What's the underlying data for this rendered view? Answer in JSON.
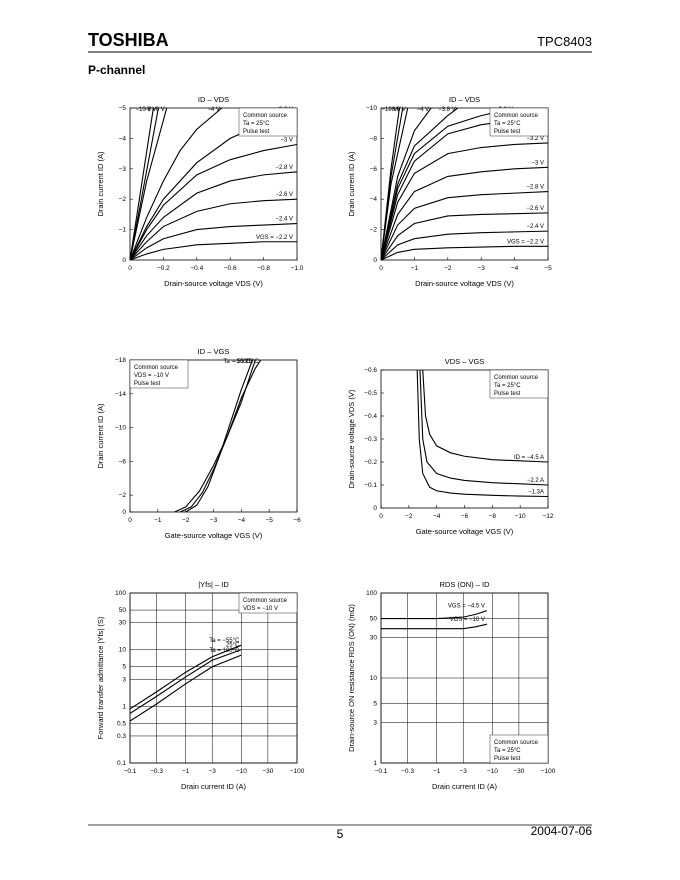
{
  "header": {
    "brand": "TOSHIBA",
    "part": "TPC8403",
    "section": "P-channel"
  },
  "footer": {
    "page": "5",
    "date": "2004-07-06"
  },
  "chart_data": [
    {
      "type": "line",
      "title": "ID – VDS",
      "xlabel": "Drain-source voltage   VDS   (V)",
      "ylabel": "Drain current   ID   (A)",
      "color": "#000000",
      "annotations": [
        "Common source",
        "Ta = 25°C",
        "Pulse test"
      ],
      "annot_corner": "top-right",
      "xlim": [
        0,
        -1
      ],
      "ylim": [
        0,
        -5
      ],
      "xticks": [
        0,
        {
          "value": -0.2,
          "label": "−0.2"
        },
        {
          "value": -0.4,
          "label": "−0.4"
        },
        {
          "value": -0.6,
          "label": "−0.6"
        },
        {
          "value": -0.8,
          "label": "−0.8"
        },
        {
          "value": -1,
          "label": "−1.0"
        }
      ],
      "yticks": [
        0,
        {
          "value": -1,
          "label": "−1"
        },
        {
          "value": -2,
          "label": "−2"
        },
        {
          "value": -3,
          "label": "−3"
        },
        {
          "value": -4,
          "label": "−4"
        },
        {
          "value": -5,
          "label": "−5"
        }
      ],
      "series": [
        {
          "name": "−10 V",
          "x": [
            0,
            -0.14
          ],
          "values": [
            0,
            -5
          ]
        },
        {
          "name": "−8 V",
          "x": [
            0,
            -0.17
          ],
          "values": [
            0,
            -5
          ]
        },
        {
          "name": "−6 V",
          "x": [
            0,
            -0.1,
            -0.22
          ],
          "values": [
            0,
            -2.6,
            -5
          ]
        },
        {
          "name": "−4 V",
          "x": [
            0,
            -0.1,
            -0.2,
            -0.3,
            -0.4,
            -0.55
          ],
          "values": [
            0,
            -1.4,
            -2.6,
            -3.6,
            -4.3,
            -5
          ]
        },
        {
          "name": "−3.2 V",
          "x": [
            0,
            -0.1,
            -0.2,
            -0.4,
            -0.6,
            -0.8,
            -1
          ],
          "values": [
            0,
            -1.1,
            -2,
            -3.2,
            -4,
            -4.5,
            -4.8
          ]
        },
        {
          "name": "−3 V",
          "x": [
            0,
            -0.1,
            -0.2,
            -0.4,
            -0.6,
            -0.8,
            -1
          ],
          "values": [
            0,
            -1,
            -1.8,
            -2.8,
            -3.3,
            -3.6,
            -3.8
          ]
        },
        {
          "name": "−2.8 V",
          "x": [
            0,
            -0.1,
            -0.2,
            -0.4,
            -0.6,
            -0.8,
            -1
          ],
          "values": [
            0,
            -0.8,
            -1.4,
            -2.2,
            -2.6,
            -2.8,
            -2.9
          ]
        },
        {
          "name": "−2.6 V",
          "x": [
            0,
            -0.1,
            -0.2,
            -0.4,
            -0.6,
            -0.8,
            -1
          ],
          "values": [
            0,
            -0.6,
            -1.1,
            -1.6,
            -1.85,
            -1.95,
            -2
          ]
        },
        {
          "name": "−2.4 V",
          "x": [
            0,
            -0.1,
            -0.2,
            -0.4,
            -0.6,
            -0.8,
            -1
          ],
          "values": [
            0,
            -0.4,
            -0.7,
            -1,
            -1.1,
            -1.15,
            -1.2
          ]
        },
        {
          "name": "VGS = −2.2 V",
          "x": [
            0,
            -0.1,
            -0.2,
            -0.4,
            -0.6,
            -0.8,
            -1
          ],
          "values": [
            0,
            -0.2,
            -0.35,
            -0.5,
            -0.55,
            -0.6,
            -0.6
          ]
        }
      ]
    },
    {
      "type": "line",
      "title": "ID – VDS",
      "xlabel": "Drain-source voltage   VDS   (V)",
      "ylabel": "Drain current   ID   (A)",
      "color": "#000000",
      "annotations": [
        "Common source",
        "Ta = 25°C",
        "Pulse test"
      ],
      "annot_corner": "top-right",
      "xlim": [
        0,
        -5
      ],
      "ylim": [
        0,
        -10
      ],
      "xticks": [
        0,
        {
          "value": -1,
          "label": "−1"
        },
        {
          "value": -2,
          "label": "−2"
        },
        {
          "value": -3,
          "label": "−3"
        },
        {
          "value": -4,
          "label": "−4"
        },
        {
          "value": -5,
          "label": "−5"
        }
      ],
      "yticks": [
        0,
        {
          "value": -2,
          "label": "−2"
        },
        {
          "value": -4,
          "label": "−4"
        },
        {
          "value": -6,
          "label": "−6"
        },
        {
          "value": -8,
          "label": "−8"
        },
        {
          "value": -10,
          "label": "−10"
        }
      ],
      "series": [
        {
          "name": "−10 V",
          "x": [
            0,
            -0.3,
            -0.55
          ],
          "values": [
            0,
            -6,
            -10
          ]
        },
        {
          "name": "−8 V",
          "x": [
            0,
            -0.3,
            -0.65
          ],
          "values": [
            0,
            -5.5,
            -10
          ]
        },
        {
          "name": "−6 V",
          "x": [
            0,
            -0.3,
            -0.8
          ],
          "values": [
            0,
            -5,
            -10
          ]
        },
        {
          "name": "−4 V",
          "x": [
            0,
            -0.5,
            -1,
            -1.5
          ],
          "values": [
            0,
            -5.5,
            -8.5,
            -10
          ]
        },
        {
          "name": "−3.8 V",
          "x": [
            0,
            -0.5,
            -1,
            -2,
            -2.3
          ],
          "values": [
            0,
            -5,
            -7.5,
            -9.5,
            -10
          ]
        },
        {
          "name": "−3.6 V",
          "x": [
            0,
            -0.5,
            -1,
            -2,
            -3,
            -4
          ],
          "values": [
            0,
            -4.7,
            -7,
            -8.8,
            -9.5,
            -10
          ]
        },
        {
          "name": "−3.4 V",
          "x": [
            0,
            -0.5,
            -1,
            -2,
            -3,
            -4,
            -5
          ],
          "values": [
            0,
            -4.3,
            -6.5,
            -8.3,
            -8.9,
            -9.2,
            -9.4
          ]
        },
        {
          "name": "−3.2 V",
          "x": [
            0,
            -0.5,
            -1,
            -2,
            -3,
            -4,
            -5
          ],
          "values": [
            0,
            -3.8,
            -5.7,
            -7,
            -7.4,
            -7.6,
            -7.7
          ]
        },
        {
          "name": "−3 V",
          "x": [
            0,
            -0.5,
            -1,
            -2,
            -3,
            -4,
            -5
          ],
          "values": [
            0,
            -3,
            -4.5,
            -5.5,
            -5.8,
            -6,
            -6.1
          ]
        },
        {
          "name": "−2.8 V",
          "x": [
            0,
            -0.5,
            -1,
            -2,
            -3,
            -4,
            -5
          ],
          "values": [
            0,
            -2.3,
            -3.4,
            -4.1,
            -4.3,
            -4.4,
            -4.5
          ]
        },
        {
          "name": "−2.6 V",
          "x": [
            0,
            -0.5,
            -1,
            -2,
            -3,
            -4,
            -5
          ],
          "values": [
            0,
            -1.6,
            -2.4,
            -2.9,
            -3,
            -3.05,
            -3.1
          ]
        },
        {
          "name": "−2.4 V",
          "x": [
            0,
            -0.5,
            -1,
            -2,
            -3,
            -4,
            -5
          ],
          "values": [
            0,
            -1,
            -1.4,
            -1.7,
            -1.8,
            -1.85,
            -1.9
          ]
        },
        {
          "name": "VGS = −2.2 V",
          "x": [
            0,
            -0.5,
            -1,
            -2,
            -3,
            -4,
            -5
          ],
          "values": [
            0,
            -0.5,
            -0.7,
            -0.8,
            -0.85,
            -0.9,
            -0.9
          ]
        }
      ]
    },
    {
      "type": "line",
      "title": "ID – VGS",
      "xlabel": "Gate-source voltage   VGS   (V)",
      "ylabel": "Drain current   ID   (A)",
      "color": "#000000",
      "annotations": [
        "Common source",
        "VDS = −10 V",
        "Pulse test"
      ],
      "annot_corner": "top-left",
      "xlim": [
        0,
        -6
      ],
      "ylim": [
        0,
        -18
      ],
      "xticks": [
        0,
        {
          "value": -1,
          "label": "−1"
        },
        {
          "value": -2,
          "label": "−2"
        },
        {
          "value": -3,
          "label": "−3"
        },
        {
          "value": -4,
          "label": "−4"
        },
        {
          "value": -5,
          "label": "−5"
        },
        {
          "value": -6,
          "label": "−6"
        }
      ],
      "yticks": [
        0,
        {
          "value": -2,
          "label": "−2"
        },
        {
          "value": -6,
          "label": "−6"
        },
        {
          "value": -10,
          "label": "−10"
        },
        {
          "value": -14,
          "label": "−14"
        },
        {
          "value": -18,
          "label": "−18"
        }
      ],
      "series": [
        {
          "name": "−55°C",
          "x": [
            -2,
            -2.4,
            -2.8,
            -3.2,
            -3.6,
            -4,
            -4.4
          ],
          "values": [
            0,
            -0.8,
            -3,
            -6.5,
            -10.5,
            -14.5,
            -18
          ]
        },
        {
          "name": "25°C",
          "x": [
            -1.8,
            -2.2,
            -2.6,
            -3,
            -3.5,
            -4,
            -4.5,
            -4.7
          ],
          "values": [
            0,
            -0.6,
            -2.3,
            -5,
            -9,
            -13.5,
            -17,
            -18
          ]
        },
        {
          "name": "Ta = 100°C",
          "x": [
            -1.6,
            -2,
            -2.5,
            -3,
            -3.5,
            -4,
            -4.5
          ],
          "values": [
            0,
            -0.6,
            -2.5,
            -5.5,
            -9,
            -13,
            -18
          ]
        }
      ]
    },
    {
      "type": "line",
      "title": "VDS – VGS",
      "xlabel": "Gate-source voltage   VGS   (V)",
      "ylabel": "Drain-source voltage   VDS   (V)",
      "color": "#000000",
      "annotations": [
        "Common source",
        "Ta = 25°C",
        "Pulse test"
      ],
      "annot_corner": "top-right",
      "xlim": [
        0,
        -12
      ],
      "ylim": [
        0,
        -0.6
      ],
      "xticks": [
        0,
        {
          "value": -2,
          "label": "−2"
        },
        {
          "value": -4,
          "label": "−4"
        },
        {
          "value": -6,
          "label": "−6"
        },
        {
          "value": -8,
          "label": "−8"
        },
        {
          "value": -10,
          "label": "−10"
        },
        {
          "value": -12,
          "label": "−12"
        }
      ],
      "yticks": [
        0,
        {
          "value": -0.1,
          "label": "−0.1"
        },
        {
          "value": -0.2,
          "label": "−0.2"
        },
        {
          "value": -0.3,
          "label": "−0.3"
        },
        {
          "value": -0.4,
          "label": "−0.4"
        },
        {
          "value": -0.5,
          "label": "−0.5"
        },
        {
          "value": -0.6,
          "label": "−0.6"
        }
      ],
      "series": [
        {
          "name": "ID = −4.5 A",
          "x": [
            -3,
            -3.2,
            -3.5,
            -4,
            -5,
            -6,
            -8,
            -10,
            -12
          ],
          "values": [
            -0.6,
            -0.4,
            -0.32,
            -0.27,
            -0.24,
            -0.225,
            -0.21,
            -0.205,
            -0.2
          ]
        },
        {
          "name": "−2.2 A",
          "x": [
            -2.8,
            -3,
            -3.3,
            -4,
            -5,
            -6,
            -8,
            -10,
            -12
          ],
          "values": [
            -0.6,
            -0.3,
            -0.2,
            -0.15,
            -0.13,
            -0.12,
            -0.11,
            -0.105,
            -0.1
          ]
        },
        {
          "name": "−1.3A",
          "x": [
            -2.6,
            -2.75,
            -3,
            -3.5,
            -4,
            -5,
            -6,
            -8,
            -10,
            -12
          ],
          "values": [
            -0.6,
            -0.3,
            -0.15,
            -0.09,
            -0.075,
            -0.065,
            -0.06,
            -0.055,
            -0.052,
            -0.05
          ]
        }
      ]
    },
    {
      "type": "line",
      "title": "|Yfs| – ID",
      "xlabel": "Drain current   ID   (A)",
      "ylabel": "Forward transfer admittance   |Yfs|   (S)",
      "color": "#000000",
      "annotations": [
        "Common source",
        "VDS = −10 V"
      ],
      "annot_corner": "top-right",
      "xscale": "log",
      "yscale": "log",
      "grid": true,
      "xlim": [
        -0.1,
        -100
      ],
      "ylim": [
        0.1,
        100
      ],
      "xticks": [
        {
          "value": -0.1,
          "label": "−0.1"
        },
        {
          "value": -0.3,
          "label": "−0.3"
        },
        {
          "value": -1,
          "label": "−1"
        },
        {
          "value": -3,
          "label": "−3"
        },
        {
          "value": -10,
          "label": "−10"
        },
        {
          "value": -30,
          "label": "−30"
        },
        {
          "value": -100,
          "label": "−100"
        }
      ],
      "yticks": [
        0.1,
        0.3,
        0.5,
        1,
        3,
        5,
        10,
        30,
        50,
        100
      ],
      "series": [
        {
          "name": "Ta = −55°C",
          "x": [
            -0.1,
            -0.3,
            -1,
            -3,
            -10
          ],
          "values": [
            0.9,
            1.8,
            4,
            7.5,
            12
          ]
        },
        {
          "name": "25°C",
          "x": [
            -0.1,
            -0.3,
            -1,
            -3,
            -10
          ],
          "values": [
            0.75,
            1.5,
            3.3,
            6.5,
            10
          ]
        },
        {
          "name": "Ta = 100°C",
          "x": [
            -0.1,
            -0.3,
            -1,
            -3,
            -10
          ],
          "values": [
            0.55,
            1.1,
            2.5,
            5,
            8
          ]
        }
      ]
    },
    {
      "type": "line",
      "title": "RDS (ON) – ID",
      "xlabel": "Drain current   ID   (A)",
      "ylabel": "Drain-source ON resistance  RDS (ON)  (mΩ)",
      "color": "#000000",
      "annotations": [
        "Common source",
        "Ta = 25°C",
        "Pulse test"
      ],
      "annot_corner": "bottom-right",
      "xscale": "log",
      "yscale": "log",
      "grid": true,
      "xlim": [
        -0.1,
        -100
      ],
      "ylim": [
        1,
        100
      ],
      "xticks": [
        {
          "value": -0.1,
          "label": "−0.1"
        },
        {
          "value": -0.3,
          "label": "−0.3"
        },
        {
          "value": -1,
          "label": "−1"
        },
        {
          "value": -3,
          "label": "−3"
        },
        {
          "value": -10,
          "label": "−10"
        },
        {
          "value": -30,
          "label": "−30"
        },
        {
          "value": -100,
          "label": "−100"
        }
      ],
      "yticks": [
        1,
        3,
        5,
        10,
        30,
        50,
        100
      ],
      "series": [
        {
          "name": "VGS = −4.5 V",
          "x": [
            -0.1,
            -1,
            -3,
            -5,
            -8
          ],
          "values": [
            50,
            50,
            52,
            56,
            62
          ]
        },
        {
          "name": "VGS = −10 V",
          "x": [
            -0.1,
            -1,
            -3,
            -5,
            -8
          ],
          "values": [
            38,
            38,
            38,
            40,
            43
          ]
        }
      ]
    }
  ]
}
